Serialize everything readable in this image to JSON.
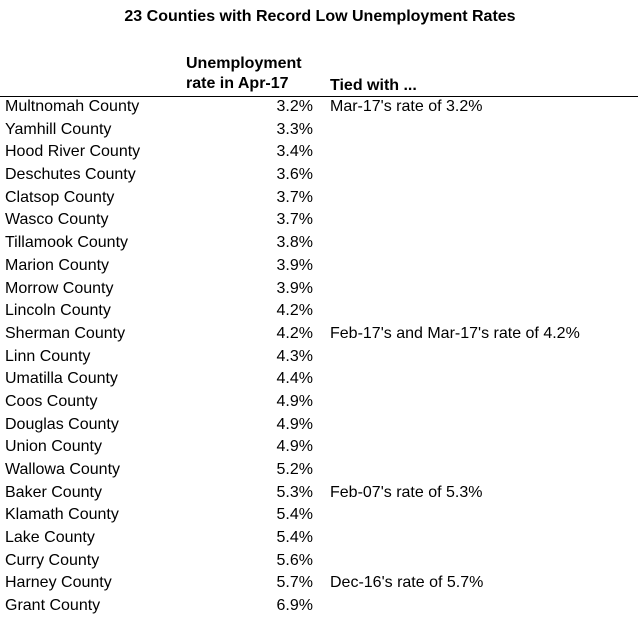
{
  "title": "23 Counties with Record Low Unemployment Rates",
  "headers": {
    "rate_line1": "Unemployment",
    "rate_line2": "rate in Apr-17",
    "tied": "Tied with ..."
  },
  "rows": [
    {
      "county": "Multnomah County",
      "rate": "3.2%",
      "tied": "Mar-17's rate of 3.2%"
    },
    {
      "county": "Yamhill County",
      "rate": "3.3%",
      "tied": ""
    },
    {
      "county": "Hood River County",
      "rate": "3.4%",
      "tied": ""
    },
    {
      "county": "Deschutes County",
      "rate": "3.6%",
      "tied": ""
    },
    {
      "county": "Clatsop County",
      "rate": "3.7%",
      "tied": ""
    },
    {
      "county": "Wasco County",
      "rate": "3.7%",
      "tied": ""
    },
    {
      "county": "Tillamook County",
      "rate": "3.8%",
      "tied": ""
    },
    {
      "county": "Marion County",
      "rate": "3.9%",
      "tied": ""
    },
    {
      "county": "Morrow County",
      "rate": "3.9%",
      "tied": ""
    },
    {
      "county": "Lincoln County",
      "rate": "4.2%",
      "tied": ""
    },
    {
      "county": "Sherman County",
      "rate": "4.2%",
      "tied": "Feb-17's and Mar-17's rate of 4.2%"
    },
    {
      "county": "Linn County",
      "rate": "4.3%",
      "tied": ""
    },
    {
      "county": "Umatilla County",
      "rate": "4.4%",
      "tied": ""
    },
    {
      "county": "Coos County",
      "rate": "4.9%",
      "tied": ""
    },
    {
      "county": "Douglas County",
      "rate": "4.9%",
      "tied": ""
    },
    {
      "county": "Union County",
      "rate": "4.9%",
      "tied": ""
    },
    {
      "county": "Wallowa County",
      "rate": "5.2%",
      "tied": ""
    },
    {
      "county": "Baker County",
      "rate": "5.3%",
      "tied": "Feb-07's rate of 5.3%"
    },
    {
      "county": "Klamath County",
      "rate": "5.4%",
      "tied": ""
    },
    {
      "county": "Lake County",
      "rate": "5.4%",
      "tied": ""
    },
    {
      "county": "Curry County",
      "rate": "5.6%",
      "tied": ""
    },
    {
      "county": "Harney County",
      "rate": "5.7%",
      "tied": "Dec-16's rate of 5.7%"
    },
    {
      "county": "Grant County",
      "rate": "6.9%",
      "tied": ""
    }
  ]
}
